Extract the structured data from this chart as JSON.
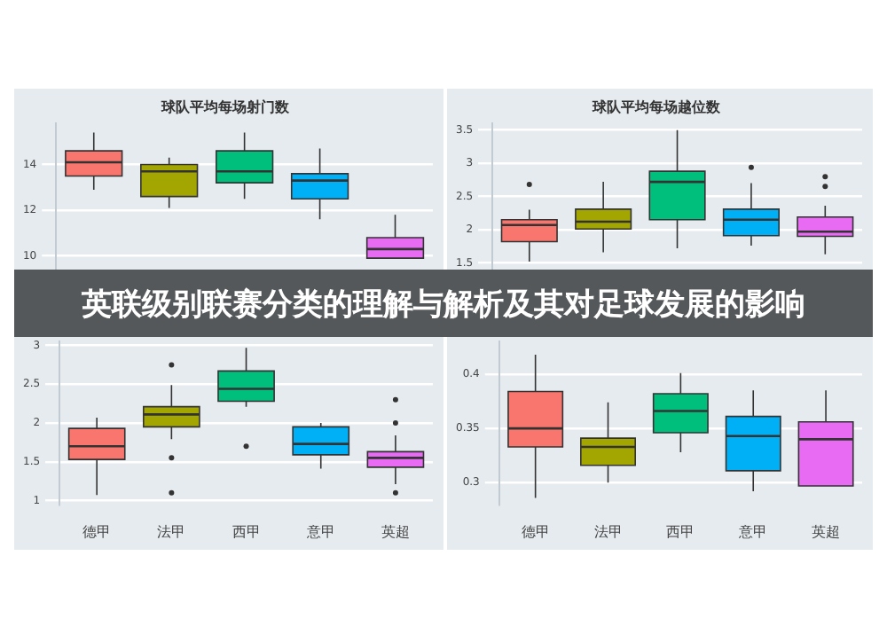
{
  "chart_data": [
    {
      "type": "box",
      "title": "球队平均每场射门数",
      "annotations": [
        "英联级别联赛分类的理解与解析及其对足球发展的影响"
      ],
      "categories": [
        null,
        null,
        null,
        null,
        null
      ],
      "colors": [
        "#f8766d",
        "#a3a500",
        "#00bf7d",
        "#00b0f6",
        "#e76bf3"
      ],
      "ylim": [
        9.4,
        15.8
      ],
      "yticks": [
        10,
        12,
        14
      ],
      "grid": "y",
      "tick_labels": "y",
      "legend": false,
      "boxes": [
        {
          "low": 12.9,
          "q1": 13.5,
          "median": 14.1,
          "q3": 14.6,
          "high": 15.4
        },
        {
          "low": 12.1,
          "q1": 12.6,
          "median": 13.7,
          "q3": 14.0,
          "high": 14.3
        },
        {
          "low": 12.5,
          "q1": 13.2,
          "median": 13.7,
          "q3": 14.6,
          "high": 15.4
        },
        {
          "low": 11.6,
          "q1": 12.5,
          "median": 13.3,
          "q3": 13.6,
          "high": 14.7
        },
        {
          "low": null,
          "q1": 9.9,
          "median": 10.3,
          "q3": 10.8,
          "high": 11.8
        }
      ]
    },
    {
      "type": "box",
      "title": "球队平均每场越位数",
      "categories": [
        null,
        null,
        null,
        null,
        null
      ],
      "colors": [
        "#f8766d",
        "#a3a500",
        "#00bf7d",
        "#00b0f6",
        "#e76bf3"
      ],
      "ylim": [
        1.4,
        3.6
      ],
      "yticks": [
        1.5,
        2.0,
        2.5,
        3.0,
        3.5
      ],
      "grid": "y",
      "tick_labels": "y",
      "legend": false,
      "boxes": [
        {
          "low": 1.52,
          "q1": 1.82,
          "median": 2.07,
          "q3": 2.15,
          "high": 2.3,
          "outliers": [
            2.68
          ]
        },
        {
          "low": 1.66,
          "q1": 2.01,
          "median": 2.12,
          "q3": 2.31,
          "high": 2.72
        },
        {
          "low": 1.72,
          "q1": 2.15,
          "median": 2.72,
          "q3": 2.88,
          "high": 3.5
        },
        {
          "low": 1.76,
          "q1": 1.91,
          "median": 2.15,
          "q3": 2.31,
          "high": 2.7,
          "outliers": [
            2.94
          ]
        },
        {
          "low": 1.63,
          "q1": 1.9,
          "median": 1.97,
          "q3": 2.19,
          "high": 2.36,
          "outliers": [
            2.8,
            2.65
          ]
        }
      ]
    },
    {
      "type": "box",
      "categories": [
        "德甲",
        "法甲",
        "西甲",
        "意甲",
        "英超"
      ],
      "colors": [
        "#f8766d",
        "#a3a500",
        "#00bf7d",
        "#00b0f6",
        "#e76bf3"
      ],
      "ylim": [
        0.95,
        3.05
      ],
      "yticks": [
        1.0,
        1.5,
        2.0,
        2.5,
        3.0
      ],
      "grid": "y",
      "legend": false,
      "boxes": [
        {
          "low": 1.07,
          "q1": 1.53,
          "median": 1.7,
          "q3": 1.93,
          "high": 2.07
        },
        {
          "low": 1.79,
          "q1": 1.95,
          "median": 2.11,
          "q3": 2.21,
          "high": 2.49,
          "outliers": [
            2.75,
            1.55,
            1.1
          ]
        },
        {
          "low": 2.21,
          "q1": 2.28,
          "median": 2.44,
          "q3": 2.67,
          "high": 2.97,
          "outliers": [
            1.7
          ]
        },
        {
          "low": 1.41,
          "q1": 1.59,
          "median": 1.73,
          "q3": 1.95,
          "high": 2.0
        },
        {
          "low": 1.21,
          "q1": 1.43,
          "median": 1.55,
          "q3": 1.63,
          "high": 1.84,
          "outliers": [
            2.3,
            2.0,
            1.1
          ]
        }
      ]
    },
    {
      "type": "box",
      "categories": [
        "德甲",
        "法甲",
        "西甲",
        "意甲",
        "英超"
      ],
      "colors": [
        "#f8766d",
        "#a3a500",
        "#00bf7d",
        "#00b0f6",
        "#e76bf3"
      ],
      "ylim": [
        0.28,
        0.43
      ],
      "yticks": [
        0.3,
        0.35,
        0.4
      ],
      "grid": "y",
      "legend": false,
      "boxes": [
        {
          "low": 0.286,
          "q1": 0.333,
          "median": 0.35,
          "q3": 0.384,
          "high": 0.418
        },
        {
          "low": 0.3,
          "q1": 0.316,
          "median": 0.333,
          "q3": 0.341,
          "high": 0.374
        },
        {
          "low": 0.328,
          "q1": 0.346,
          "median": 0.366,
          "q3": 0.382,
          "high": 0.401
        },
        {
          "low": 0.292,
          "q1": 0.311,
          "median": 0.343,
          "q3": 0.361,
          "high": 0.385
        },
        {
          "low": null,
          "q1": 0.297,
          "median": 0.34,
          "q3": 0.356,
          "high": 0.385
        }
      ]
    }
  ]
}
